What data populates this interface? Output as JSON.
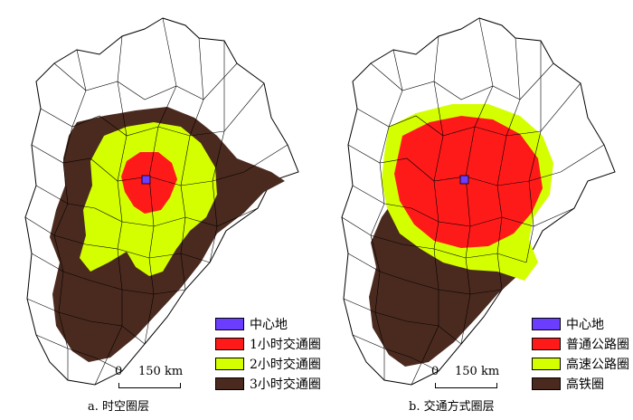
{
  "colors": {
    "center": "#6a3dff",
    "ring1": "#ff1a1a",
    "ring2": "#d4ff00",
    "ring3": "#4a2a1f",
    "boundary": "#000000"
  },
  "panel_a": {
    "caption": "a. 时空圈层",
    "legend": [
      {
        "label": "中心地",
        "color": "#6a3dff"
      },
      {
        "label": "1小时交通圈",
        "color": "#ff1a1a"
      },
      {
        "label": "2小时交通圈",
        "color": "#d4ff00"
      },
      {
        "label": "3小时交通圈",
        "color": "#4a2a1f"
      }
    ],
    "scale": {
      "zero": "0",
      "distance": "150 km"
    }
  },
  "panel_b": {
    "caption": "b. 交通方式圈层",
    "legend": [
      {
        "label": "中心地",
        "color": "#6a3dff"
      },
      {
        "label": "普通公路圈",
        "color": "#ff1a1a"
      },
      {
        "label": "高速公路圈",
        "color": "#d4ff00"
      },
      {
        "label": "高铁圈",
        "color": "#4a2a1f"
      }
    ],
    "scale": {
      "zero": "0",
      "distance": "150 km"
    }
  }
}
